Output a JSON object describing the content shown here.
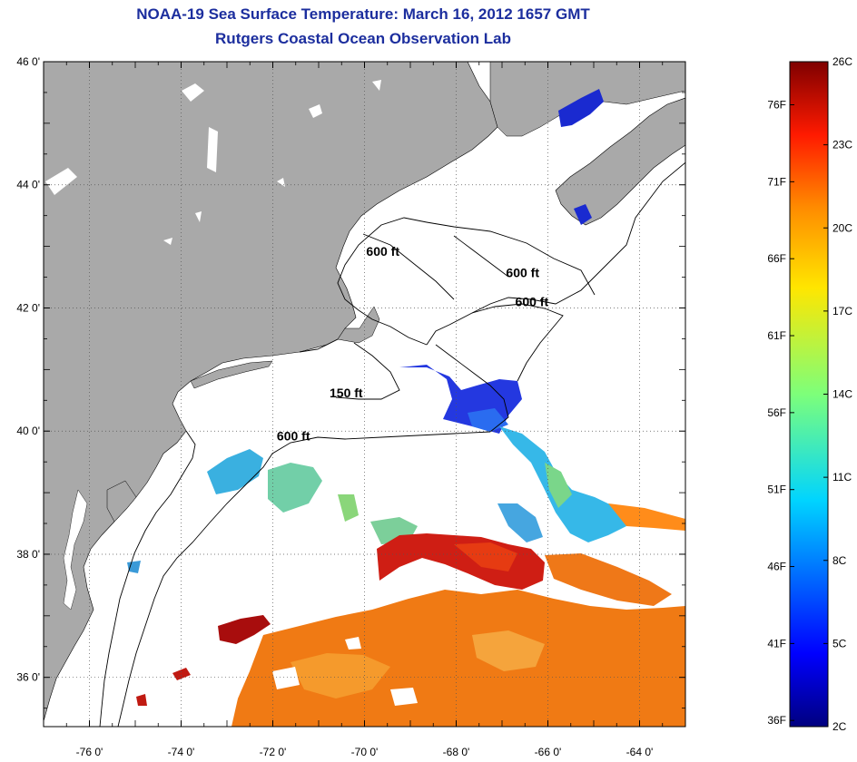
{
  "title": "NOAA-19 Sea Surface Temperature:  March 16, 2012 1657 GMT",
  "subtitle": "Rutgers Coastal Ocean Observation Lab",
  "map": {
    "lon_range": [
      -77,
      -63
    ],
    "lat_range": [
      35.2,
      46
    ],
    "lat_ticks": [
      {
        "lat": 46,
        "label": "46 0'"
      },
      {
        "lat": 44,
        "label": "44 0'"
      },
      {
        "lat": 42,
        "label": "42 0'"
      },
      {
        "lat": 40,
        "label": "40 0'"
      },
      {
        "lat": 38,
        "label": "38 0'"
      },
      {
        "lat": 36,
        "label": "36 0'"
      }
    ],
    "lon_ticks": [
      {
        "lon": -76,
        "label": "-76 0'"
      },
      {
        "lon": -74,
        "label": "-74 0'"
      },
      {
        "lon": -72,
        "label": "-72 0'"
      },
      {
        "lon": -70,
        "label": "-70 0'"
      },
      {
        "lon": -68,
        "label": "-68 0'"
      },
      {
        "lon": -66,
        "label": "-66 0'"
      },
      {
        "lon": -64,
        "label": "-64 0'"
      }
    ],
    "contour_labels": [
      {
        "text": "600 ft",
        "lon": -69.6,
        "lat": 42.85
      },
      {
        "text": "600 ft",
        "lon": -66.55,
        "lat": 42.5
      },
      {
        "text": "600 ft",
        "lon": -66.35,
        "lat": 42.03
      },
      {
        "text": "150 ft",
        "lon": -70.4,
        "lat": 40.55
      },
      {
        "text": "600 ft",
        "lon": -71.55,
        "lat": 39.85
      }
    ],
    "land_color": "#a9a9a9",
    "grid": "dotted"
  },
  "colorbar": {
    "celsius": [
      {
        "value": 26,
        "label": "26C"
      },
      {
        "value": 23,
        "label": "23C"
      },
      {
        "value": 20,
        "label": "20C"
      },
      {
        "value": 17,
        "label": "17C"
      },
      {
        "value": 14,
        "label": "14C"
      },
      {
        "value": 11,
        "label": "11C"
      },
      {
        "value": 8,
        "label": "8C"
      },
      {
        "value": 5,
        "label": "5C"
      },
      {
        "value": 2,
        "label": "2C"
      }
    ],
    "fahrenheit": [
      {
        "value": 76,
        "label": "76F"
      },
      {
        "value": 71,
        "label": "71F"
      },
      {
        "value": 66,
        "label": "66F"
      },
      {
        "value": 61,
        "label": "61F"
      },
      {
        "value": 56,
        "label": "56F"
      },
      {
        "value": 51,
        "label": "51F"
      },
      {
        "value": 46,
        "label": "46F"
      },
      {
        "value": 41,
        "label": "41F"
      },
      {
        "value": 36,
        "label": "36F"
      }
    ],
    "range_c": [
      2,
      26
    ],
    "colormap": "jet"
  }
}
